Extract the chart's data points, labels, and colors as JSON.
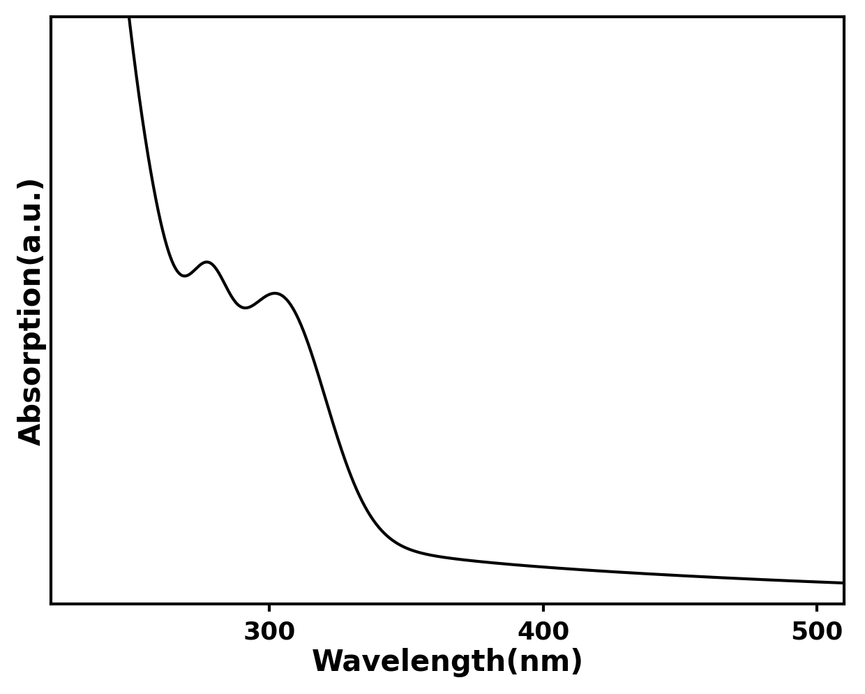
{
  "xlabel": "Wavelength(nm)",
  "ylabel": "Absorption(a.u.)",
  "xlim": [
    220,
    510
  ],
  "ylim": [
    0,
    1.05
  ],
  "xticks": [
    300,
    400,
    500
  ],
  "background_color": "#ffffff",
  "line_color": "#000000",
  "line_width": 3.0,
  "xlabel_fontsize": 30,
  "ylabel_fontsize": 30,
  "tick_fontsize": 26,
  "xlabel_fontweight": "bold",
  "ylabel_fontweight": "bold",
  "tick_fontweight": "bold",
  "spine_linewidth": 3.0
}
